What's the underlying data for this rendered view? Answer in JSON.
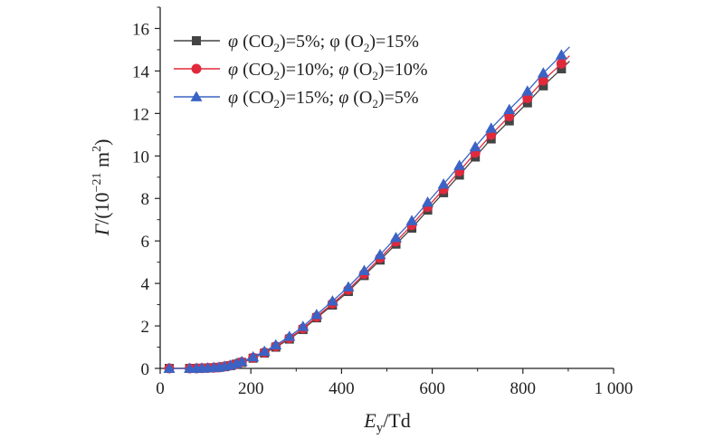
{
  "chart_data": {
    "type": "line",
    "xlabel": {
      "main": "E",
      "sub": "y",
      "rest": "/Td"
    },
    "ylabel": {
      "pre": "Γ/(10",
      "sup1": "−21",
      "mid": " m",
      "sup2": "2",
      "post": ")"
    },
    "xlim": [
      0,
      1000
    ],
    "ylim": [
      0,
      17
    ],
    "xticks": [
      0,
      200,
      400,
      600,
      800,
      1000
    ],
    "xtick_labels": [
      "0",
      "200",
      "400",
      "600",
      "800",
      "1 000"
    ],
    "yticks": [
      0,
      2,
      4,
      6,
      8,
      10,
      12,
      14,
      16
    ],
    "ytick_labels": [
      "0",
      "2",
      "4",
      "6",
      "8",
      "10",
      "12",
      "14",
      "16"
    ],
    "legend_position": "top-left",
    "series": [
      {
        "name": "φ (CO2)=5%; φ (O2)=15%",
        "legend": {
          "a": "φ (CO",
          "b": "2",
          "c": ")=5%; φ (O",
          "d": "2",
          "e": ")=15%"
        },
        "color": "#444444",
        "marker": "square",
        "x": [
          20,
          65,
          80,
          92,
          105,
          118,
          130,
          142,
          155,
          168,
          180,
          205,
          230,
          255,
          285,
          315,
          345,
          380,
          415,
          450,
          485,
          520,
          555,
          590,
          625,
          660,
          695,
          730,
          770,
          810,
          845,
          885
        ],
        "y": [
          0.0,
          0.0,
          0.0,
          0.01,
          0.02,
          0.03,
          0.05,
          0.08,
          0.13,
          0.2,
          0.28,
          0.48,
          0.72,
          1.0,
          1.38,
          1.83,
          2.38,
          2.98,
          3.62,
          4.37,
          5.1,
          5.85,
          6.6,
          7.45,
          8.27,
          9.1,
          9.95,
          10.8,
          11.65,
          12.5,
          13.3,
          14.1
        ]
      },
      {
        "name": "φ (CO2)=10%; φ (O2)=10%",
        "legend": {
          "a": "φ (CO",
          "b": "2",
          "c": ")=10%; φ (O",
          "d": "2",
          "e": ")=10%"
        },
        "color": "#e02a3c",
        "marker": "circle",
        "x": [
          20,
          65,
          80,
          92,
          105,
          118,
          130,
          142,
          155,
          168,
          180,
          205,
          230,
          255,
          285,
          315,
          345,
          380,
          415,
          450,
          485,
          520,
          555,
          590,
          625,
          660,
          695,
          730,
          770,
          810,
          845,
          885
        ],
        "y": [
          0.0,
          0.0,
          0.0,
          0.01,
          0.02,
          0.03,
          0.05,
          0.09,
          0.14,
          0.21,
          0.3,
          0.5,
          0.75,
          1.04,
          1.42,
          1.88,
          2.43,
          3.05,
          3.7,
          4.45,
          5.2,
          5.97,
          6.75,
          7.6,
          8.43,
          9.28,
          10.15,
          11.0,
          11.87,
          12.72,
          13.55,
          14.35
        ]
      },
      {
        "name": "φ (CO2)=15%; φ (O2)=5%",
        "legend": {
          "a": "φ (CO",
          "b": "2",
          "c": ")=15%; φ (O",
          "d": "2",
          "e": ")=5%"
        },
        "color": "#3a63c4",
        "marker": "triangle",
        "x": [
          20,
          65,
          80,
          92,
          105,
          118,
          130,
          142,
          155,
          168,
          180,
          205,
          230,
          255,
          285,
          315,
          345,
          380,
          415,
          450,
          485,
          520,
          555,
          590,
          625,
          660,
          695,
          730,
          770,
          810,
          845,
          885
        ],
        "y": [
          0.0,
          0.0,
          0.0,
          0.01,
          0.02,
          0.04,
          0.06,
          0.1,
          0.15,
          0.23,
          0.32,
          0.54,
          0.8,
          1.1,
          1.5,
          1.97,
          2.53,
          3.17,
          3.83,
          4.6,
          5.35,
          6.15,
          6.95,
          7.82,
          8.67,
          9.55,
          10.43,
          11.3,
          12.18,
          13.05,
          13.9,
          14.75
        ]
      }
    ]
  }
}
